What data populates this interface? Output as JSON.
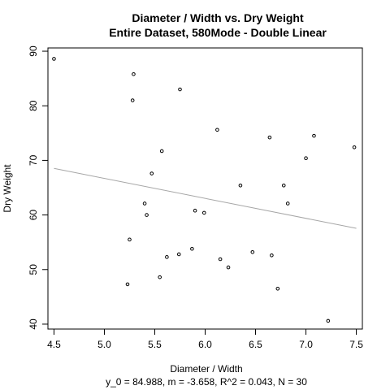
{
  "chart_data": {
    "type": "scatter",
    "title": "Diameter / Width vs. Dry Weight",
    "subtitle": "Entire Dataset, 580Mode - Double Linear",
    "xlabel": "Diameter / Width",
    "ylabel": "Dry Weight",
    "caption": "y_0 = 84.988, m = -3.658, R^2 = 0.043, N = 30",
    "xlim": [
      4.44,
      7.56
    ],
    "ylim": [
      39.1,
      90.6
    ],
    "xticks": [
      4.5,
      5.0,
      5.5,
      6.0,
      6.5,
      7.0,
      7.5
    ],
    "yticks": [
      40,
      50,
      60,
      70,
      80,
      90
    ],
    "xtick_labels": [
      "4.5",
      "5.0",
      "5.5",
      "6.0",
      "6.5",
      "7.0",
      "7.5"
    ],
    "ytick_labels": [
      "40",
      "50",
      "60",
      "70",
      "80",
      "90"
    ],
    "grid": false,
    "point_color": "#000000",
    "fit_line_color": "#a6a6a6",
    "fit_line": {
      "intercept": 84.988,
      "slope": -3.658,
      "x_range": [
        4.5,
        7.5
      ]
    },
    "points": [
      {
        "x": 4.5,
        "y": 88.6
      },
      {
        "x": 5.29,
        "y": 85.8
      },
      {
        "x": 5.28,
        "y": 81.0
      },
      {
        "x": 5.75,
        "y": 83.0
      },
      {
        "x": 6.12,
        "y": 75.6
      },
      {
        "x": 6.64,
        "y": 74.2
      },
      {
        "x": 7.08,
        "y": 74.5
      },
      {
        "x": 7.48,
        "y": 72.4
      },
      {
        "x": 5.57,
        "y": 71.7
      },
      {
        "x": 7.0,
        "y": 70.4
      },
      {
        "x": 5.47,
        "y": 67.6
      },
      {
        "x": 6.35,
        "y": 65.4
      },
      {
        "x": 6.78,
        "y": 65.4
      },
      {
        "x": 5.4,
        "y": 62.1
      },
      {
        "x": 6.82,
        "y": 62.1
      },
      {
        "x": 5.42,
        "y": 60.0
      },
      {
        "x": 5.9,
        "y": 60.8
      },
      {
        "x": 5.99,
        "y": 60.4
      },
      {
        "x": 5.25,
        "y": 55.5
      },
      {
        "x": 5.87,
        "y": 53.8
      },
      {
        "x": 5.74,
        "y": 52.8
      },
      {
        "x": 5.62,
        "y": 52.3
      },
      {
        "x": 6.47,
        "y": 53.2
      },
      {
        "x": 6.66,
        "y": 52.6
      },
      {
        "x": 6.15,
        "y": 51.9
      },
      {
        "x": 6.23,
        "y": 50.4
      },
      {
        "x": 5.55,
        "y": 48.6
      },
      {
        "x": 5.23,
        "y": 47.3
      },
      {
        "x": 6.72,
        "y": 46.5
      },
      {
        "x": 7.22,
        "y": 40.6
      }
    ]
  }
}
